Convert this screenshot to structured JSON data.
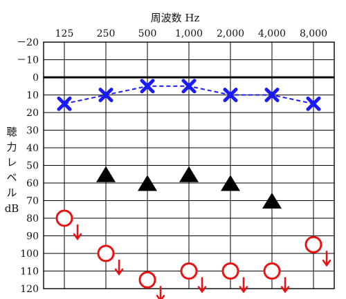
{
  "chart_data": {
    "type": "scatter",
    "title": "周波数 Hz",
    "xlabel": "周波数 Hz",
    "ylabel": "聴力レベル dB",
    "ylabel_lines": [
      "聴",
      "力",
      "レ",
      "ベ",
      "ル",
      "dB"
    ],
    "categories": [
      "125",
      "250",
      "500",
      "1,000",
      "2,000",
      "4,000",
      "8,000"
    ],
    "ytick_labels": [
      "－20",
      "－10",
      "0",
      "10",
      "20",
      "30",
      "40",
      "50",
      "60",
      "70",
      "80",
      "90",
      "100",
      "110",
      "120"
    ],
    "ylim": [
      -20,
      120
    ],
    "y_inverted": true,
    "grid": true,
    "reference_line_y": 0,
    "series": [
      {
        "marker": "x",
        "color": "#1a1aff",
        "line": "dashed",
        "points": [
          {
            "x": "125",
            "y": 15
          },
          {
            "x": "250",
            "y": 10
          },
          {
            "x": "500",
            "y": 5
          },
          {
            "x": "1,000",
            "y": 5
          },
          {
            "x": "2,000",
            "y": 10
          },
          {
            "x": "4,000",
            "y": 10
          },
          {
            "x": "8,000",
            "y": 15
          }
        ]
      },
      {
        "marker": "triangle",
        "color": "#000000",
        "line": "none",
        "points": [
          {
            "x": "250",
            "y": 55
          },
          {
            "x": "500",
            "y": 60
          },
          {
            "x": "1,000",
            "y": 55
          },
          {
            "x": "2,000",
            "y": 60
          },
          {
            "x": "4,000",
            "y": 70
          }
        ]
      },
      {
        "marker": "circle-scale-out",
        "color": "#ee1111",
        "line": "none",
        "points": [
          {
            "x": "125",
            "y": 80
          },
          {
            "x": "250",
            "y": 100
          },
          {
            "x": "500",
            "y": 115
          },
          {
            "x": "1,000",
            "y": 110
          },
          {
            "x": "2,000",
            "y": 110
          },
          {
            "x": "4,000",
            "y": 110
          },
          {
            "x": "8,000",
            "y": 95
          }
        ]
      }
    ]
  }
}
